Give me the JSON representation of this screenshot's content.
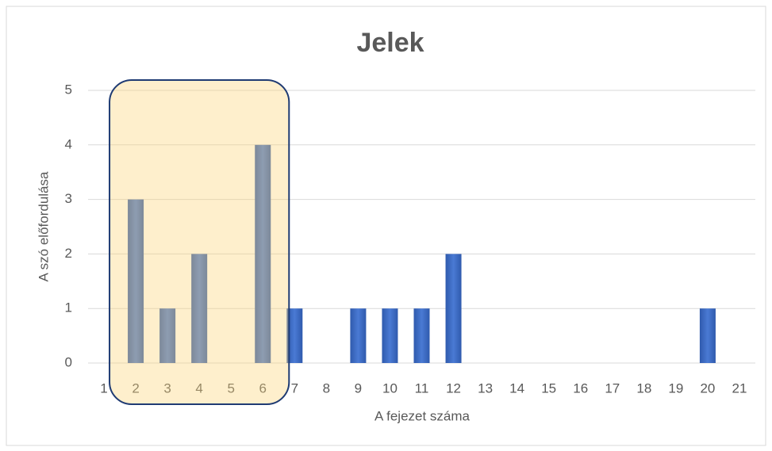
{
  "chart_data": {
    "type": "bar",
    "title": "Jelek",
    "x_label": "A fejezet száma",
    "y_label": "A szó előfordulása",
    "categories": [
      "1",
      "2",
      "3",
      "4",
      "5",
      "6",
      "7",
      "8",
      "9",
      "10",
      "11",
      "12",
      "13",
      "14",
      "15",
      "16",
      "17",
      "18",
      "19",
      "20",
      "21"
    ],
    "values": [
      0,
      3,
      1,
      2,
      0,
      4,
      1,
      0,
      1,
      1,
      1,
      2,
      0,
      0,
      0,
      0,
      0,
      0,
      0,
      1,
      0
    ],
    "color": "#3a67c0",
    "ylim": [
      0,
      5
    ],
    "yticks": [
      0,
      1,
      2,
      3,
      4,
      5
    ],
    "grid": true
  }
}
